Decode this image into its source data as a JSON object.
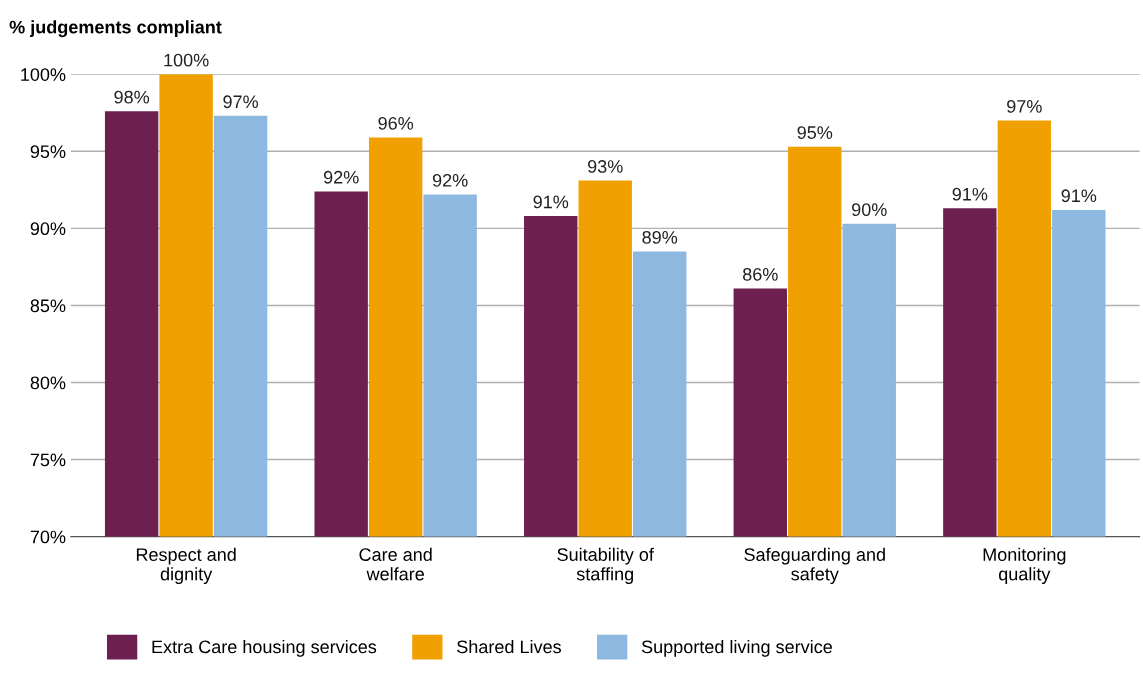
{
  "chart_data": {
    "type": "bar",
    "ylabel": "% judgements compliant",
    "categories": [
      "Respect and\ndignity",
      "Care and\nwelfare",
      "Suitability of\nstaffing",
      "Safeguarding and\nsafety",
      "Monitoring\nquality"
    ],
    "series": [
      {
        "name": "Extra Care housing services",
        "color": "#6d1f4f",
        "values": [
          97.6,
          92.4,
          90.8,
          86.1,
          91.3
        ],
        "value_labels": [
          "98%",
          "92%",
          "91%",
          "86%",
          "91%"
        ]
      },
      {
        "name": "Shared Lives",
        "color": "#f0a000",
        "values": [
          100,
          95.9,
          93.1,
          95.3,
          97.0
        ],
        "value_labels": [
          "100%",
          "96%",
          "93%",
          "95%",
          "97%"
        ]
      },
      {
        "name": "Supported living service",
        "color": "#8db8e0",
        "values": [
          97.3,
          92.2,
          88.5,
          90.3,
          91.2
        ],
        "value_labels": [
          "97%",
          "92%",
          "89%",
          "90%",
          "91%"
        ]
      }
    ],
    "ylim": [
      70,
      100
    ],
    "yticks": [
      {
        "value": 70,
        "label": "70%"
      },
      {
        "value": 75,
        "label": "75%"
      },
      {
        "value": 80,
        "label": "80%"
      },
      {
        "value": 85,
        "label": "85%"
      },
      {
        "value": 90,
        "label": "90%"
      },
      {
        "value": 95,
        "label": "95%"
      },
      {
        "value": 100,
        "label": "100%"
      }
    ],
    "grid": "y",
    "legend": "bottom"
  }
}
